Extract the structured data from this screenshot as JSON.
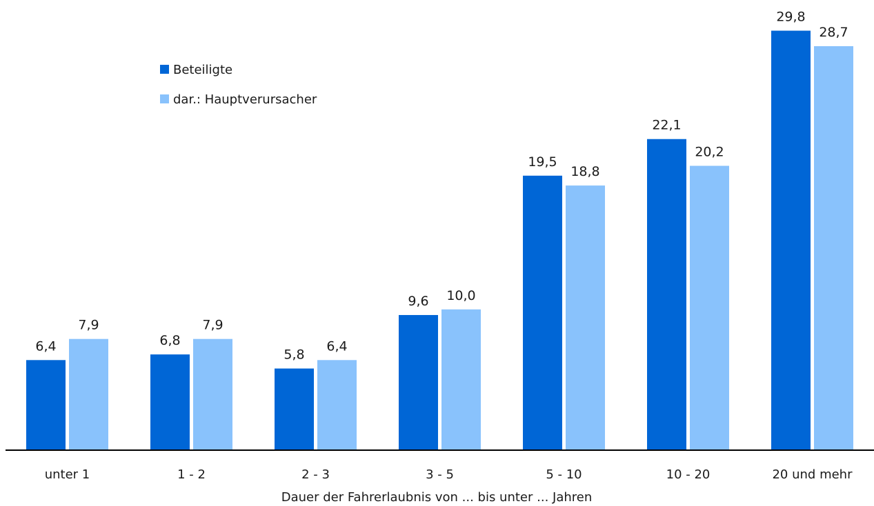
{
  "chart_data": {
    "type": "bar",
    "title": "",
    "xlabel": "Dauer der Fahrerlaubnis von ... bis unter ... Jahren",
    "ylabel": "",
    "ylim": [
      0,
      31
    ],
    "grid": false,
    "legend_position": "top-left",
    "categories": [
      "unter 1",
      "1 - 2",
      "2 - 3",
      "3 - 5",
      "5 - 10",
      "10 - 20",
      "20 und mehr"
    ],
    "series": [
      {
        "name": "Beteiligte",
        "color": "#0066d6",
        "values": [
          6.4,
          6.8,
          5.8,
          9.6,
          19.5,
          22.1,
          29.8
        ],
        "labels": [
          "6,4",
          "6,8",
          "5,8",
          "9,6",
          "19,5",
          "22,1",
          "29,8"
        ]
      },
      {
        "name": "dar.: Hauptverursacher",
        "color": "#89c2fc",
        "values": [
          7.9,
          7.9,
          6.4,
          10.0,
          18.8,
          20.2,
          28.7
        ],
        "labels": [
          "7,9",
          "7,9",
          "6,4",
          "10,0",
          "18,8",
          "20,2",
          "28,7"
        ]
      }
    ]
  }
}
